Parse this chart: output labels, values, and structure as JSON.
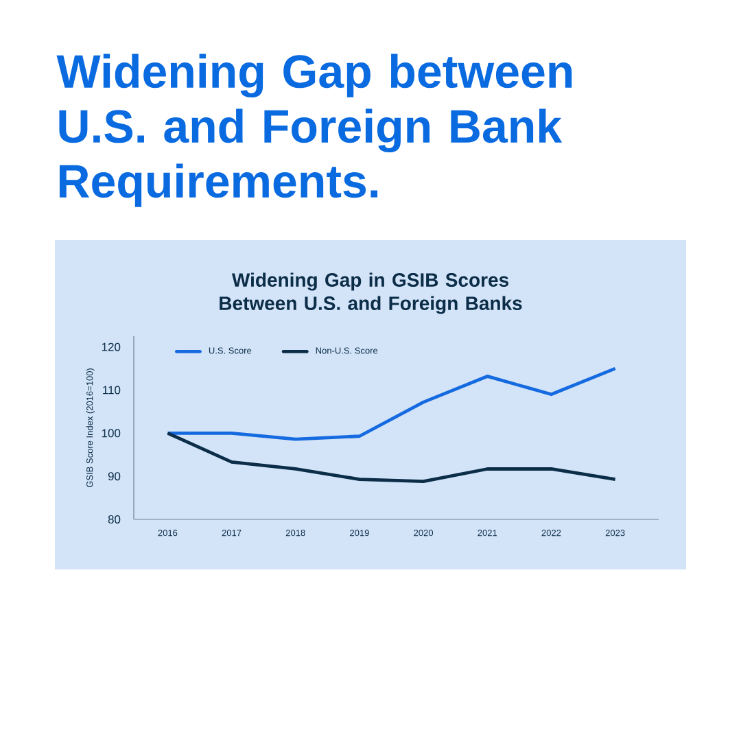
{
  "chart_data": {
    "type": "line",
    "title": "Widening Gap between U.S. and Foreign Bank Requirements.",
    "subtitle": "Widening Gap in GSIB Scores Between U.S. and Foreign Banks",
    "ylabel": "GSIB Score Index (2016=100)",
    "categories": [
      "2016",
      "2017",
      "2018",
      "2019",
      "2020",
      "2021",
      "2022",
      "2023"
    ],
    "series": [
      {
        "name": "U.S. Score",
        "color": "#156ae0",
        "values": [
          100,
          100,
          98.6,
          99.3,
          107.2,
          113.2,
          109,
          115
        ]
      },
      {
        "name": "Non-U.S. Score",
        "color": "#0c2d48",
        "values": [
          100,
          93.3,
          91.7,
          89.3,
          88.8,
          91.7,
          91.7,
          89.3
        ]
      }
    ],
    "ylim": [
      80,
      122.5
    ],
    "yticks": [
      80,
      90,
      100,
      110,
      120
    ],
    "grid": false,
    "legend": "top left",
    "marker": "none",
    "line_style": "solid"
  }
}
